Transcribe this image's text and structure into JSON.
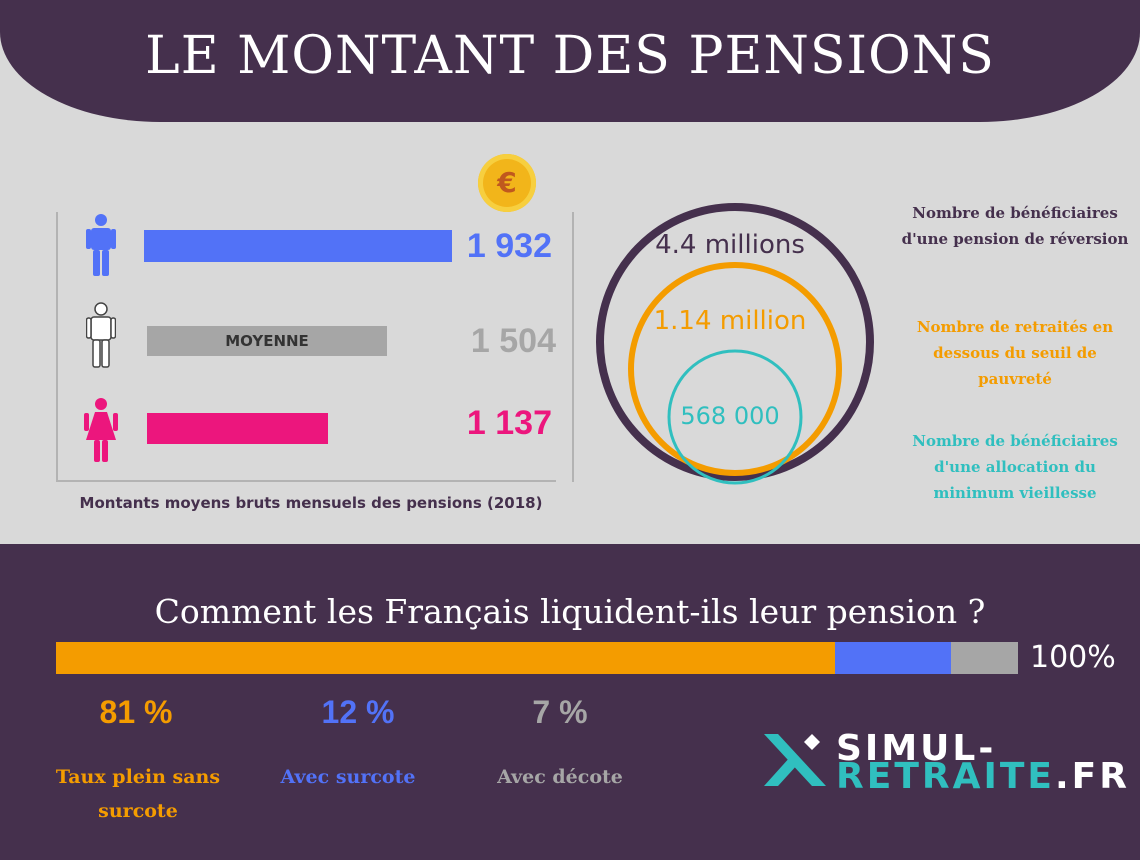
{
  "header": {
    "title": "LE MONTANT DES PENSIONS"
  },
  "icons": {
    "coin": "euro-coin-icon",
    "man": "man-icon",
    "person": "person-icon",
    "woman": "woman-icon"
  },
  "coin_symbol": "€",
  "chart_data": [
    {
      "type": "bar",
      "orientation": "horizontal",
      "title": "Montants moyens bruts mensuels des pensions (2018)",
      "categories": [
        "Hommes",
        "Moyenne",
        "Femmes"
      ],
      "values": [
        1932,
        1504,
        1137
      ],
      "value_labels": [
        "1 932",
        "1 504",
        "1 137"
      ],
      "inner_label": "MOYENNE",
      "colors": [
        "#5272f7",
        "#a6a6a6",
        "#ec167d"
      ],
      "xlim": [
        0,
        1932
      ]
    },
    {
      "type": "nested-circles",
      "labels": [
        "4.4 millions",
        "1.14 million",
        "568 000"
      ],
      "values": [
        4400000,
        1140000,
        568000
      ],
      "colors": [
        "#45304d",
        "#f49c00",
        "#30bfbf"
      ],
      "legend": [
        "Nombre de bénéficiaires d'une pension de réversion",
        "Nombre de retraités en dessous du seuil de pauvreté",
        "Nombre de bénéficiaires d'une allocation du minimum vieillesse"
      ]
    },
    {
      "type": "stacked-bar",
      "title": "Comment les Français liquident-ils leur pension ?",
      "total_label": "100%",
      "values": [
        81,
        12,
        7
      ],
      "value_labels": [
        "81 %",
        "12 %",
        "7 %"
      ],
      "categories": [
        "Taux plein sans surcote",
        "Avec surcote",
        "Avec décote"
      ],
      "colors": [
        "#f49c00",
        "#5272f7",
        "#a6a6a6"
      ]
    }
  ],
  "logo": {
    "line1": "SIMUL-",
    "line2_main": "RETRAITE",
    "line2_suffix": ".FR",
    "accent": "#30bfbf",
    "icon": "x-arrow-logo-icon"
  }
}
